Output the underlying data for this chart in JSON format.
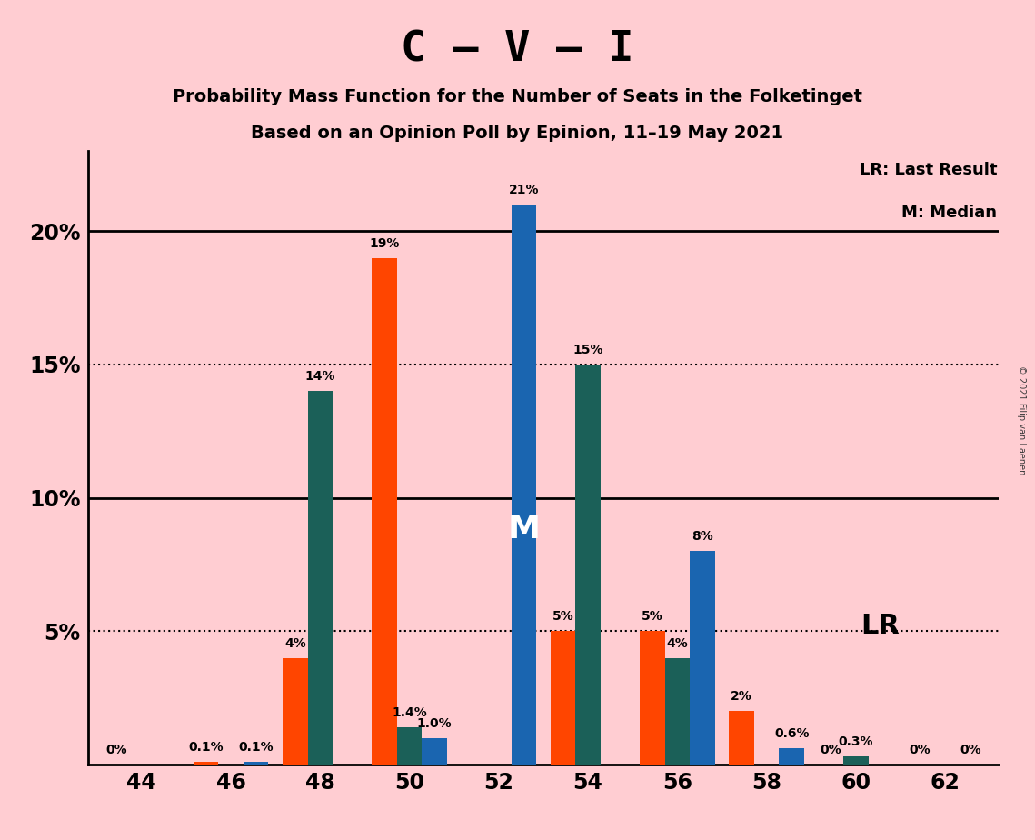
{
  "title": "C – V – I",
  "subtitle1": "Probability Mass Function for the Number of Seats in the Folketinget",
  "subtitle2": "Based on an Opinion Poll by Epinion, 11–19 May 2021",
  "copyright": "© 2021 Filip van Laenen",
  "legend1": "LR: Last Result",
  "legend2": "M: Median",
  "lr_label": "LR",
  "median_label": "M",
  "background_color": "#FFCDD2",
  "bar_color_orange": "#FF4500",
  "bar_color_teal": "#1B6058",
  "bar_color_blue": "#1A65B0",
  "seats": [
    44,
    46,
    48,
    50,
    52,
    54,
    56,
    58,
    60,
    62
  ],
  "orange_values": [
    0.0,
    0.1,
    4.0,
    19.0,
    0.0,
    5.0,
    5.0,
    2.0,
    0.0,
    0.0
  ],
  "teal_values": [
    0.0,
    0.0,
    14.0,
    1.4,
    0.0,
    15.0,
    4.0,
    0.0,
    0.3,
    0.0
  ],
  "blue_values": [
    0.0,
    0.1,
    0.0,
    1.0,
    21.0,
    0.0,
    8.0,
    0.6,
    0.0,
    0.0
  ],
  "orange_labels": [
    "0%",
    "0.1%",
    "4%",
    "19%",
    "",
    "5%",
    "5%",
    "2%",
    "0%",
    "0%"
  ],
  "teal_labels": [
    "",
    "",
    "14%",
    "1.4%",
    "",
    "15%",
    "4%",
    "",
    "0.3%",
    ""
  ],
  "blue_labels": [
    "",
    "0.1%",
    "",
    "1.0%",
    "21%",
    "",
    "8%",
    "0.6%",
    "",
    "0%"
  ],
  "ylim": [
    0,
    23
  ],
  "yticks": [
    0,
    5,
    10,
    15,
    20
  ],
  "ytick_labels": [
    "",
    "5%",
    "10%",
    "15%",
    "20%"
  ],
  "dotted_lines": [
    5,
    15
  ],
  "solid_lines": [
    10,
    20
  ],
  "median_seat": 52,
  "median_bar": "blue"
}
